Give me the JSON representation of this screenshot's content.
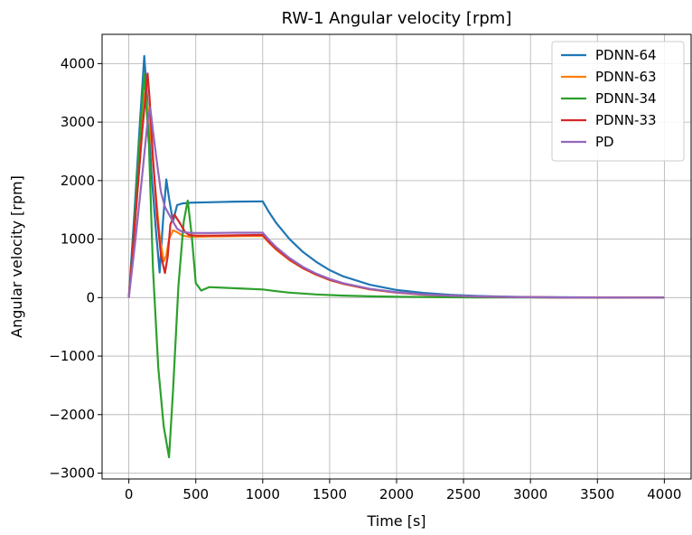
{
  "chart_data": {
    "type": "line",
    "title": "RW-1 Angular velocity [rpm]",
    "xlabel": "Time [s]",
    "ylabel": "Angular velocity [rpm]",
    "xlim": [
      -200,
      4200
    ],
    "ylim": [
      -3100,
      4500
    ],
    "xticks": [
      0,
      500,
      1000,
      1500,
      2000,
      2500,
      3000,
      3500,
      4000
    ],
    "yticks": [
      -3000,
      -2000,
      -1000,
      0,
      1000,
      2000,
      3000,
      4000
    ],
    "xtick_labels": [
      "0",
      "500",
      "1000",
      "1500",
      "2000",
      "2500",
      "3000",
      "3500",
      "4000"
    ],
    "ytick_labels": [
      "−3000",
      "−2000",
      "−1000",
      "0",
      "1000",
      "2000",
      "3000",
      "4000"
    ],
    "grid": true,
    "legend_position": "top-right",
    "series": [
      {
        "name": "PDNN-64",
        "color": "#1f77b4",
        "x": [
          0,
          40,
          80,
          115,
          140,
          170,
          200,
          230,
          255,
          280,
          300,
          330,
          360,
          400,
          450,
          500,
          600,
          800,
          1000,
          1050,
          1100,
          1200,
          1300,
          1400,
          1500,
          1600,
          1800,
          2000,
          2200,
          2400,
          2600,
          2800,
          3000,
          3200,
          3500,
          3800,
          4000
        ],
        "y": [
          0,
          1400,
          2900,
          4130,
          3300,
          2100,
          1200,
          430,
          1300,
          2020,
          1700,
          1300,
          1580,
          1610,
          1620,
          1625,
          1630,
          1640,
          1645,
          1450,
          1280,
          1000,
          780,
          610,
          470,
          365,
          220,
          130,
          80,
          48,
          28,
          17,
          10,
          6,
          3,
          1,
          0
        ]
      },
      {
        "name": "PDNN-63",
        "color": "#ff7f0e",
        "x": [
          0,
          40,
          80,
          120,
          150,
          170,
          200,
          230,
          260,
          280,
          300,
          330,
          360,
          400,
          450,
          500,
          600,
          800,
          1000,
          1050,
          1100,
          1200,
          1300,
          1400,
          1500,
          1600,
          1800,
          2000,
          2200,
          2400,
          2600,
          2800,
          3000,
          3200,
          3500,
          3800,
          4000
        ],
        "y": [
          0,
          1100,
          2300,
          3500,
          3150,
          2600,
          1800,
          1050,
          620,
          720,
          1000,
          1150,
          1120,
          1060,
          1040,
          1040,
          1045,
          1050,
          1055,
          930,
          820,
          640,
          500,
          390,
          300,
          235,
          140,
          85,
          50,
          30,
          18,
          11,
          6,
          4,
          2,
          1,
          0
        ]
      },
      {
        "name": "PDNN-34",
        "color": "#2ca02c",
        "x": [
          0,
          40,
          80,
          115,
          150,
          180,
          220,
          260,
          300,
          330,
          370,
          410,
          440,
          470,
          500,
          540,
          600,
          800,
          1000,
          1100,
          1200,
          1400,
          1600,
          1800,
          2000,
          2300,
          2600,
          3000,
          3500,
          4000
        ],
        "y": [
          0,
          1200,
          2700,
          3820,
          2600,
          500,
          -1200,
          -2200,
          -2730,
          -1600,
          200,
          1300,
          1660,
          1050,
          250,
          120,
          180,
          160,
          140,
          110,
          85,
          55,
          35,
          22,
          14,
          8,
          4,
          2,
          1,
          0
        ]
      },
      {
        "name": "PDNN-33",
        "color": "#d62728",
        "x": [
          0,
          50,
          100,
          140,
          155,
          180,
          210,
          240,
          270,
          290,
          310,
          340,
          380,
          420,
          450,
          500,
          600,
          800,
          1000,
          1050,
          1100,
          1200,
          1300,
          1400,
          1500,
          1600,
          1800,
          2000,
          2200,
          2400,
          2600,
          2800,
          3000,
          3200,
          3500,
          3800,
          4000
        ],
        "y": [
          0,
          1400,
          2850,
          3830,
          3400,
          2400,
          1400,
          720,
          420,
          700,
          1250,
          1420,
          1280,
          1120,
          1070,
          1060,
          1060,
          1065,
          1070,
          945,
          835,
          650,
          505,
          395,
          305,
          240,
          145,
          88,
          52,
          32,
          19,
          11,
          7,
          4,
          2,
          1,
          0
        ]
      },
      {
        "name": "PD",
        "color": "#9467bd",
        "x": [
          0,
          50,
          100,
          140,
          160,
          180,
          210,
          240,
          270,
          300,
          330,
          360,
          400,
          450,
          500,
          600,
          800,
          1000,
          1050,
          1100,
          1200,
          1300,
          1400,
          1500,
          1600,
          1800,
          2000,
          2200,
          2400,
          2600,
          2800,
          3000,
          3200,
          3500,
          3800,
          4000
        ],
        "y": [
          0,
          1000,
          2100,
          3020,
          3250,
          2850,
          2300,
          1800,
          1550,
          1420,
          1300,
          1180,
          1120,
          1110,
          1105,
          1105,
          1110,
          1110,
          980,
          865,
          675,
          525,
          410,
          318,
          248,
          150,
          92,
          55,
          33,
          20,
          12,
          7,
          4,
          2,
          1,
          0
        ]
      }
    ]
  }
}
